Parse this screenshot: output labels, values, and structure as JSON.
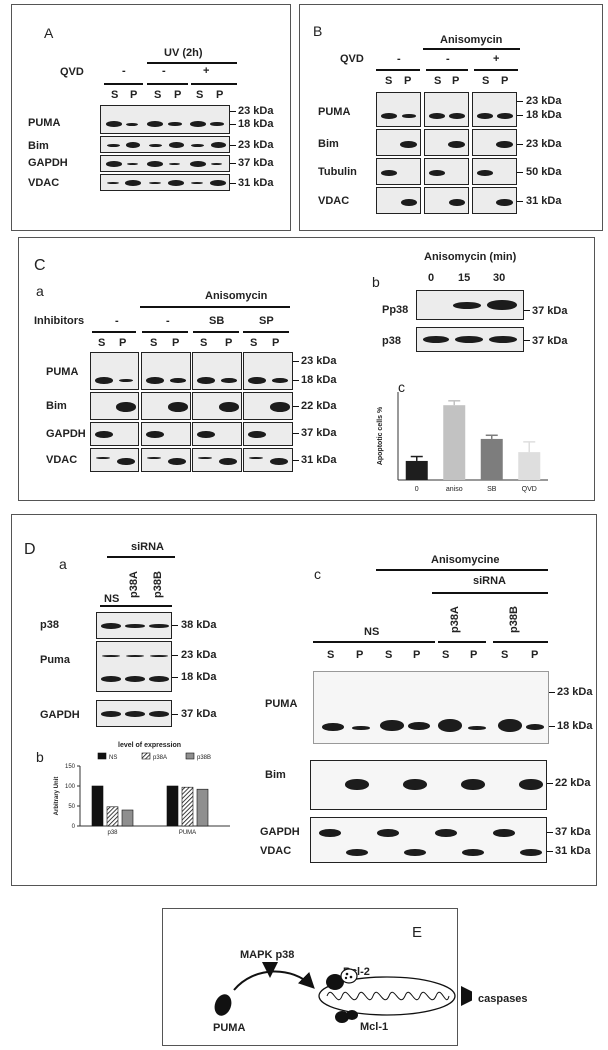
{
  "panelA": {
    "label": "A",
    "uv": "UV (2h)",
    "qvd": "QVD",
    "cond": [
      "-",
      "-",
      "+"
    ],
    "sp": [
      "S",
      "P",
      "S",
      "P",
      "S",
      "P"
    ],
    "rows": [
      "PUMA",
      "Bim",
      "GAPDH",
      "VDAC"
    ],
    "kda": [
      "23 kDa",
      "18 kDa",
      "23 kDa",
      "37 kDa",
      "31 kDa"
    ]
  },
  "panelB": {
    "label": "B",
    "aniso": "Anisomycin",
    "qvd": "QVD",
    "cond": [
      "-",
      "-",
      "+"
    ],
    "sp": [
      "S",
      "P",
      "S",
      "P",
      "S",
      "P"
    ],
    "rows": [
      "PUMA",
      "Bim",
      "Tubulin",
      "VDAC"
    ],
    "kda": [
      "23 kDa",
      "18 kDa",
      "23 kDa",
      "50 kDa",
      "31 kDa"
    ]
  },
  "panelC": {
    "label": "C",
    "a": "a",
    "aniso": "Anisomycin",
    "inhibitors": "Inhibitors",
    "cond": [
      "-",
      "-",
      "SB",
      "SP"
    ],
    "sp": [
      "S",
      "P",
      "S",
      "P",
      "S",
      "P",
      "S",
      "P"
    ],
    "rows": [
      "PUMA",
      "Bim",
      "GAPDH",
      "VDAC"
    ],
    "kda": [
      "23 kDa",
      "18 kDa",
      "22 kDa",
      "37 kDa",
      "31 kDa"
    ],
    "b": "b",
    "aniso_min": "Anisomycin  (min)",
    "times": [
      "0",
      "15",
      "30"
    ],
    "b_rows": [
      "Pp38",
      "p38"
    ],
    "b_kda": [
      "37 kDa",
      "37 kDa"
    ],
    "c": "c"
  },
  "chart_data": [
    {
      "type": "bar",
      "ylabel": "Apoptotic cells %",
      "categories": [
        "0",
        "aniso",
        "SB",
        "QVD"
      ],
      "values": [
        13,
        51,
        28,
        19
      ],
      "errors": [
        3,
        3,
        2.5,
        7
      ],
      "ylim": [
        0,
        60
      ],
      "colors": [
        "#1e1e1e",
        "#c2c2c2",
        "#7d7d7d",
        "#dedede"
      ]
    },
    {
      "type": "bar",
      "title": "level of expression",
      "ylabel": "Arbitrary Unit",
      "categories": [
        "p38",
        "PUMA"
      ],
      "series": [
        {
          "name": "NS",
          "values": [
            100,
            100
          ]
        },
        {
          "name": "p38A",
          "values": [
            48,
            97
          ]
        },
        {
          "name": "p38B",
          "values": [
            40,
            92
          ]
        }
      ],
      "yticks": [
        "150",
        "100",
        "50",
        "0"
      ],
      "ylim": [
        0,
        150
      ],
      "legend": "top"
    }
  ],
  "panelD": {
    "label": "D",
    "a": "a",
    "sirna": "siRNA",
    "lanes": [
      "NS",
      "p38A",
      "p38B"
    ],
    "rows": [
      "p38",
      "Puma",
      "GAPDH"
    ],
    "kda": [
      "38 kDa",
      "23 kDa",
      "18 kDa",
      "37 kDa"
    ],
    "b": "b",
    "c": "c",
    "c_aniso": "Anisomycine",
    "c_sirna": "siRNA",
    "c_ns": "NS",
    "c_p38a": "p38A",
    "c_p38b": "p38B",
    "sp": [
      "S",
      "P",
      "S",
      "P",
      "S",
      "P",
      "S",
      "P"
    ],
    "c_rows": [
      "PUMA",
      "Bim",
      "GAPDH",
      "VDAC"
    ],
    "c_kda": [
      "23 kDa",
      "18 kDa",
      "22 kDa",
      "37 kDa",
      "31 kDa"
    ]
  },
  "panelE": {
    "label": "E",
    "mapk": "MAPK p38",
    "bcl2": "Bcl-2",
    "puma": "PUMA",
    "mcl1": "Mcl-1",
    "caspases": "caspases"
  }
}
